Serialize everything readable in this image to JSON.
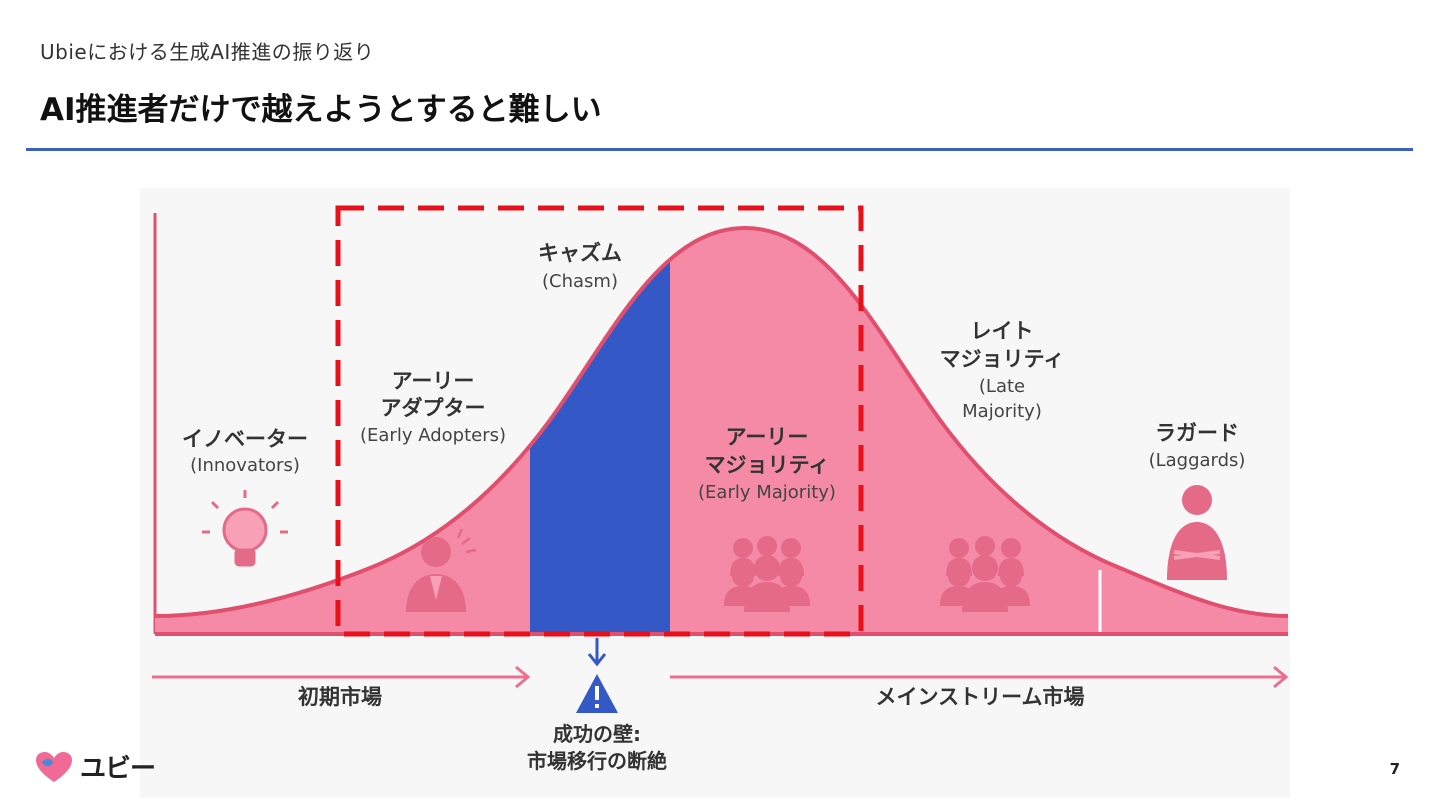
{
  "header": {
    "subtitle": "Ubieにおける生成AI推進の振り返り",
    "title": "AI推進者だけで越えようとすると難しい"
  },
  "diagram": {
    "segments": [
      {
        "jp": "イノベーター",
        "en": "(Innovators)"
      },
      {
        "jp1": "アーリー",
        "jp2": "アダプター",
        "en": "(Early Adopters)"
      },
      {
        "jp": "キャズム",
        "en": "(Chasm)"
      },
      {
        "jp1": "アーリー",
        "jp2": "マジョリティ",
        "en": "(Early Majority)"
      },
      {
        "jp1": "レイト",
        "jp2": "マジョリティ",
        "en1": "(Late",
        "en2": "Majority)"
      },
      {
        "jp": "ラガード",
        "en": "(Laggards)"
      }
    ],
    "arrows": {
      "left_label": "初期市場",
      "right_label": "メインストリーム市場"
    },
    "wall": {
      "line1": "成功の壁:",
      "line2": "市場移行の断絶"
    },
    "colors": {
      "curve_fill": "#f48aa6",
      "curve_stroke": "#e0506e",
      "chasm": "#3458c6",
      "highlight_box": "#e8101a"
    }
  },
  "footer": {
    "logo_text": "ユビー",
    "page_number": "7"
  }
}
